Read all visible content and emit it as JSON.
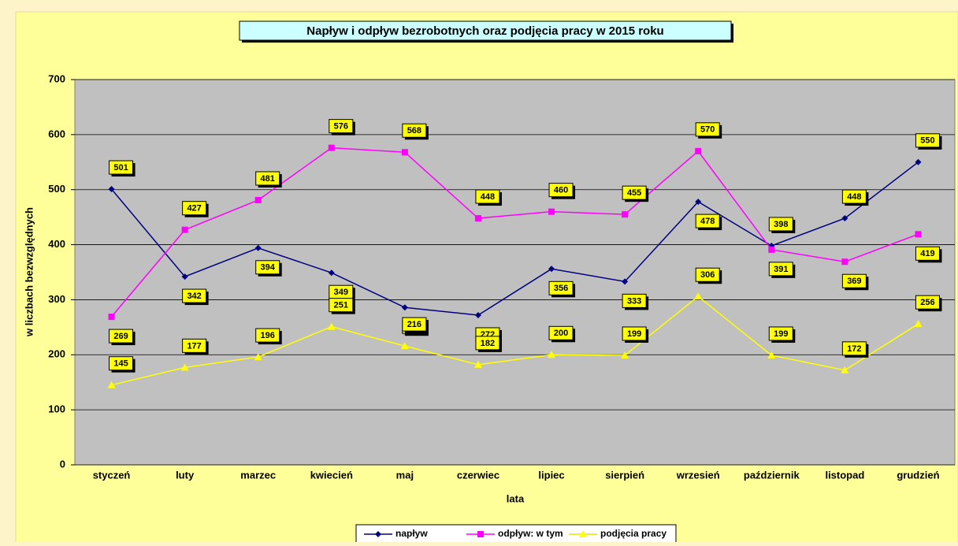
{
  "chart_data": {
    "type": "line",
    "title": "Napływ i odpływ bezrobotnych oraz podjęcia pracy w 2015 roku",
    "x_label": "lata",
    "y_label": "w liczbach bezwzględnych",
    "categories": [
      "styczeń",
      "luty",
      "marzec",
      "kwiecień",
      "maj",
      "czerwiec",
      "lipiec",
      "sierpień",
      "wrzesień",
      "październik",
      "listopad",
      "grudzień"
    ],
    "series": [
      {
        "name": "napływ",
        "color": "#000080",
        "marker": "diamond",
        "values": [
          501,
          342,
          394,
          349,
          286,
          272,
          356,
          333,
          478,
          398,
          448,
          550
        ]
      },
      {
        "name": "odpływ: w tym",
        "color": "#ff00ff",
        "marker": "square",
        "values": [
          269,
          427,
          481,
          576,
          568,
          448,
          460,
          455,
          570,
          391,
          369,
          419
        ]
      },
      {
        "name": "podjęcia pracy",
        "color": "#ffff00",
        "marker": "triangle",
        "values": [
          145,
          177,
          196,
          251,
          216,
          182,
          200,
          199,
          306,
          199,
          172,
          256
        ]
      }
    ],
    "ylim": [
      0,
      700
    ],
    "yticks": [
      0,
      100,
      200,
      300,
      400,
      500,
      600,
      700
    ],
    "grid": true,
    "legend": "bottom"
  }
}
